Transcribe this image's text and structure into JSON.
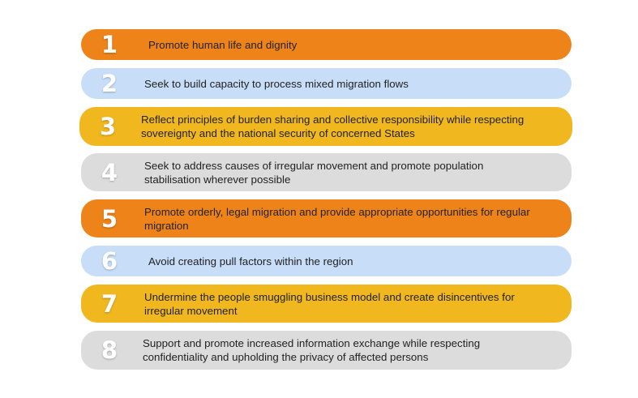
{
  "colors": {
    "orange": "#EE8419",
    "blue": "#C8DEF8",
    "yellow": "#F0B71F",
    "gray": "#DCDCDC"
  },
  "items": [
    {
      "number": "1",
      "text": "Promote human life and dignity",
      "color": "#EE8419"
    },
    {
      "number": "2",
      "text": "Seek to build capacity to process mixed migration flows",
      "color": "#C8DEF8"
    },
    {
      "number": "3",
      "text": "Reflect principles of burden sharing and collective responsibility while respecting sovereignty and the national security of concerned States",
      "color": "#F0B71F"
    },
    {
      "number": "4",
      "text": "Seek to address causes of irregular movement and promote population stabilisation wherever possible",
      "color": "#DCDCDC"
    },
    {
      "number": "5",
      "text": "Promote orderly, legal migration and provide appropriate opportunities for regular migration",
      "color": "#EE8419"
    },
    {
      "number": "6",
      "text": "Avoid creating pull factors within the region",
      "color": "#C8DEF8"
    },
    {
      "number": "7",
      "text": "Undermine the people smuggling business model and create disincentives for irregular movement",
      "color": "#F0B71F"
    },
    {
      "number": "8",
      "text": "Support and promote increased information exchange while respecting confidentiality and upholding the privacy of affected persons",
      "color": "#DCDCDC"
    }
  ]
}
